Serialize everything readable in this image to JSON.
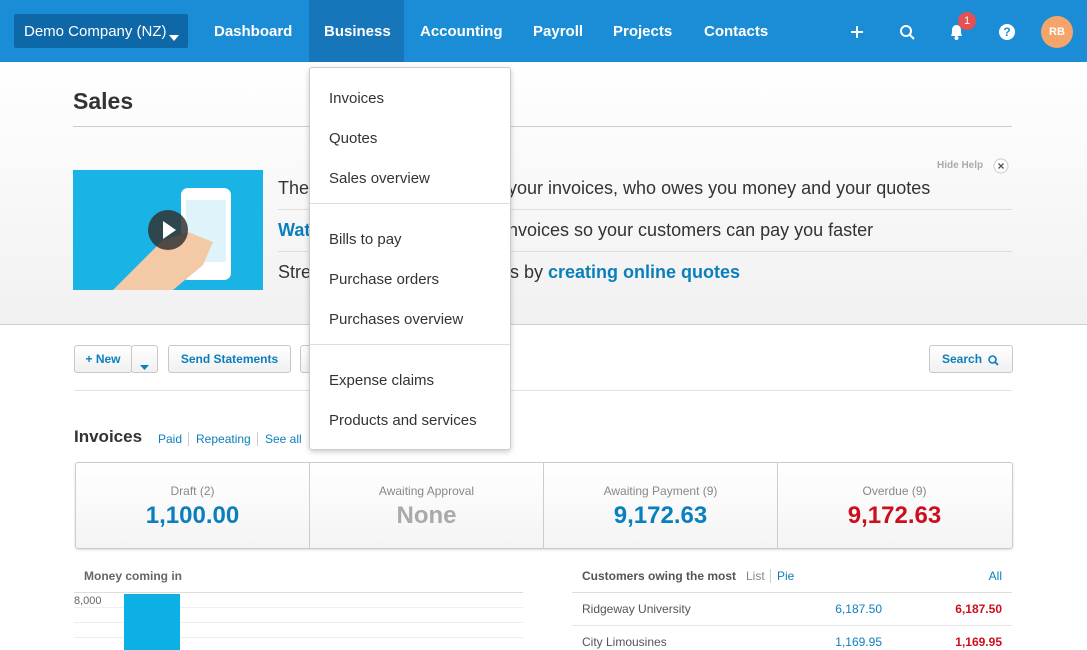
{
  "nav": {
    "org": "Demo Company (NZ)",
    "items": [
      "Dashboard",
      "Business",
      "Accounting",
      "Payroll",
      "Projects",
      "Contacts"
    ],
    "badge": "1",
    "help": "?",
    "avatar": "RB"
  },
  "page_title": "Sales",
  "help": {
    "hide": "Hide Help",
    "line1": {
      "start": "The",
      "end": "your invoices, who owes you money and your quotes"
    },
    "line2": {
      "start": "Wat",
      "end": "nvoices so your customers can pay you faster"
    },
    "line3": {
      "start": "Stre",
      "end": "s by ",
      "link": "creating online quotes"
    }
  },
  "menu": {
    "groups": [
      [
        "Invoices",
        "Quotes",
        "Sales overview"
      ],
      [
        "Bills to pay",
        "Purchase orders",
        "Purchases overview"
      ],
      [
        "Expense claims",
        "Products and services"
      ]
    ]
  },
  "toolbar": {
    "new": "+ New",
    "send": "Send Statements",
    "search": "Search"
  },
  "invoices": {
    "title": "Invoices",
    "links": [
      "Paid",
      "Repeating",
      "See all"
    ],
    "summary": [
      {
        "label": "Draft (2)",
        "value": "1,100.00"
      },
      {
        "label": "Awaiting Approval",
        "value": "None"
      },
      {
        "label": "Awaiting Payment (9)",
        "value": "9,172.63"
      },
      {
        "label": "Overdue (9)",
        "value": "9,172.63"
      }
    ]
  },
  "money": {
    "title": "Money coming in",
    "axis_label": "8,000"
  },
  "customers": {
    "title": "Customers owing the most",
    "links": [
      "List",
      "Pie"
    ],
    "all": "All",
    "rows": [
      [
        "Ridgeway University",
        "6,187.50",
        "6,187.50"
      ],
      [
        "City Limousines",
        "1,169.95",
        "1,169.95"
      ]
    ]
  }
}
